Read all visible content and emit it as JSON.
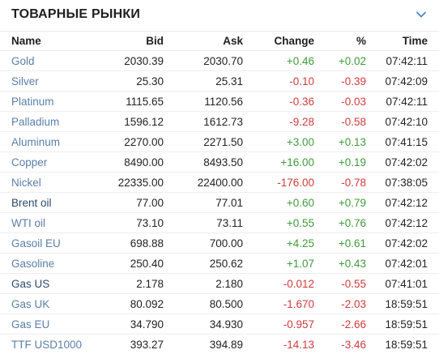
{
  "widget": {
    "title": "ТОВАРНЫЕ РЫНКИ",
    "collapse_icon": "chevron-down-icon"
  },
  "columns": {
    "name": "Name",
    "bid": "Bid",
    "ask": "Ask",
    "change": "Change",
    "pct": "%",
    "time": "Time"
  },
  "colors": {
    "positive": "#3e9c3a",
    "negative": "#d23a3a",
    "link": "#5a7fa8",
    "accent": "#4a86c5"
  },
  "rows": [
    {
      "name": "Gold",
      "bid": "2030.39",
      "ask": "2030.70",
      "change": "+0.46",
      "pct": "+0.02",
      "time": "07:42:11",
      "dir": "pos"
    },
    {
      "name": "Silver",
      "bid": "25.30",
      "ask": "25.31",
      "change": "-0.10",
      "pct": "-0.39",
      "time": "07:42:09",
      "dir": "neg"
    },
    {
      "name": "Platinum",
      "bid": "1115.65",
      "ask": "1120.56",
      "change": "-0.36",
      "pct": "-0.03",
      "time": "07:42:11",
      "dir": "neg"
    },
    {
      "name": "Palladium",
      "bid": "1596.12",
      "ask": "1612.73",
      "change": "-9.28",
      "pct": "-0.58",
      "time": "07:42:10",
      "dir": "neg"
    },
    {
      "name": "Aluminum",
      "bid": "2270.00",
      "ask": "2271.50",
      "change": "+3.00",
      "pct": "+0.13",
      "time": "07:41:15",
      "dir": "pos"
    },
    {
      "name": "Copper",
      "bid": "8490.00",
      "ask": "8493.50",
      "change": "+16.00",
      "pct": "+0.19",
      "time": "07:42:02",
      "dir": "pos"
    },
    {
      "name": "Nickel",
      "bid": "22335.00",
      "ask": "22400.00",
      "change": "-176.00",
      "pct": "-0.78",
      "time": "07:38:05",
      "dir": "neg"
    },
    {
      "name": "Brent oil",
      "bid": "77.00",
      "ask": "77.01",
      "change": "+0.60",
      "pct": "+0.79",
      "time": "07:42:12",
      "dir": "pos",
      "dark": true
    },
    {
      "name": "WTI oil",
      "bid": "73.10",
      "ask": "73.11",
      "change": "+0.55",
      "pct": "+0.76",
      "time": "07:42:12",
      "dir": "pos"
    },
    {
      "name": "Gasoil EU",
      "bid": "698.88",
      "ask": "700.00",
      "change": "+4.25",
      "pct": "+0.61",
      "time": "07:42:02",
      "dir": "pos"
    },
    {
      "name": "Gasoline",
      "bid": "250.40",
      "ask": "250.62",
      "change": "+1.07",
      "pct": "+0.43",
      "time": "07:42:01",
      "dir": "pos"
    },
    {
      "name": "Gas US",
      "bid": "2.178",
      "ask": "2.180",
      "change": "-0.012",
      "pct": "-0.55",
      "time": "07:41:01",
      "dir": "neg",
      "dark": true
    },
    {
      "name": "Gas UK",
      "bid": "80.092",
      "ask": "80.500",
      "change": "-1.670",
      "pct": "-2.03",
      "time": "18:59:51",
      "dir": "neg"
    },
    {
      "name": "Gas EU",
      "bid": "34.790",
      "ask": "34.930",
      "change": "-0.957",
      "pct": "-2.66",
      "time": "18:59:51",
      "dir": "neg"
    },
    {
      "name": "TTF USD1000",
      "bid": "393.27",
      "ask": "394.89",
      "change": "-14.13",
      "pct": "-3.46",
      "time": "18:59:51",
      "dir": "neg"
    }
  ]
}
